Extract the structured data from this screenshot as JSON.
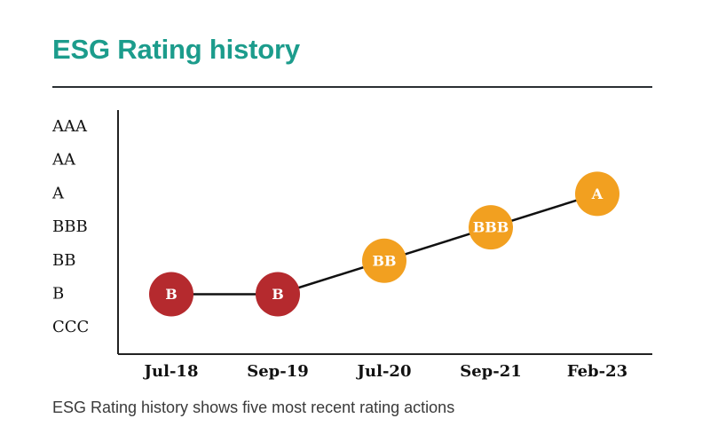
{
  "header": {
    "title": "ESG Rating history"
  },
  "caption": "ESG Rating history shows five most recent rating actions",
  "chart_data": {
    "type": "line",
    "title": "ESG Rating history",
    "x_categories": [
      "Jul-18",
      "Sep-19",
      "Jul-20",
      "Sep-21",
      "Feb-23"
    ],
    "y_categories": [
      "CCC",
      "B",
      "BB",
      "BBB",
      "A",
      "AA",
      "AAA"
    ],
    "points": [
      {
        "x": "Jul-18",
        "rating": "B",
        "color": "#b52a2e"
      },
      {
        "x": "Sep-19",
        "rating": "B",
        "color": "#b52a2e"
      },
      {
        "x": "Jul-20",
        "rating": "BB",
        "color": "#f2a020"
      },
      {
        "x": "Sep-21",
        "rating": "BBB",
        "color": "#f2a020"
      },
      {
        "x": "Feb-23",
        "rating": "A",
        "color": "#f2a020"
      }
    ],
    "colors": {
      "laggard": "#b52a2e",
      "average": "#f2a020",
      "line": "#111111",
      "axis": "#222222"
    }
  }
}
